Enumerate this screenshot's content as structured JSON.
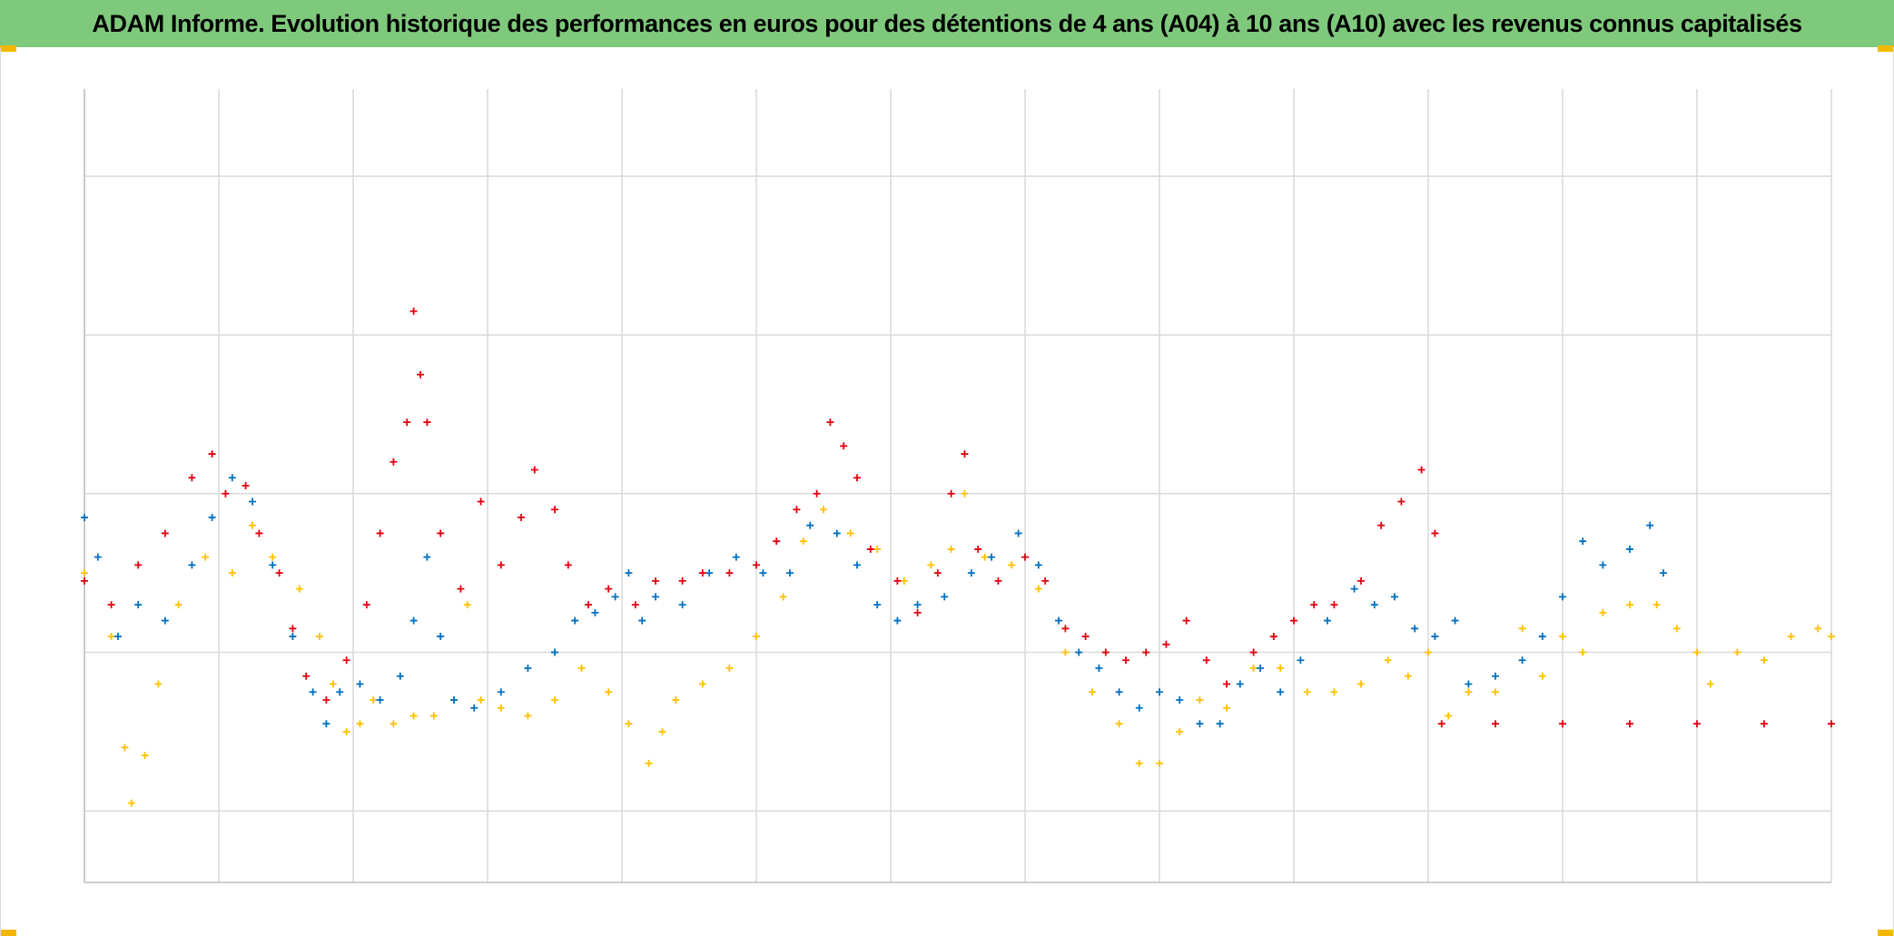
{
  "title": "ADAM Informe. Evolution historique des performances en euros pour des détentions de 4 ans (A04) à 10 ans (A10) avec les revenus connus capitalisés",
  "colors": {
    "title_background": "#7fc97c",
    "corner_accent": "#f2b800",
    "grid": "#d9d9d9",
    "plot_border": "#bfbfbf"
  },
  "chart_data": {
    "type": "scatter",
    "marker": "plus",
    "grid": true,
    "legend": "none",
    "tick_labels_visible": false,
    "xlim": [
      0,
      13
    ],
    "ylim": [
      -0.45,
      4.55
    ],
    "x_gridlines": 13,
    "y_gridlines": [
      0,
      1,
      2,
      3,
      4
    ],
    "series": [
      {
        "color": "#ffc000",
        "points": [
          [
            0.0,
            1.5
          ],
          [
            0.2,
            1.1
          ],
          [
            0.3,
            0.4
          ],
          [
            0.35,
            0.05
          ],
          [
            0.45,
            0.35
          ],
          [
            0.55,
            0.8
          ],
          [
            0.7,
            1.3
          ],
          [
            0.9,
            1.6
          ],
          [
            1.1,
            1.5
          ],
          [
            1.25,
            1.8
          ],
          [
            1.4,
            1.6
          ],
          [
            1.6,
            1.4
          ],
          [
            1.75,
            1.1
          ],
          [
            1.85,
            0.8
          ],
          [
            1.95,
            0.5
          ],
          [
            2.05,
            0.55
          ],
          [
            2.15,
            0.7
          ],
          [
            2.3,
            0.55
          ],
          [
            2.45,
            0.6
          ],
          [
            2.6,
            0.6
          ],
          [
            2.75,
            0.7
          ],
          [
            2.85,
            1.3
          ],
          [
            2.95,
            0.7
          ],
          [
            3.1,
            0.65
          ],
          [
            3.3,
            0.6
          ],
          [
            3.5,
            0.7
          ],
          [
            3.7,
            0.9
          ],
          [
            3.9,
            0.75
          ],
          [
            4.05,
            0.55
          ],
          [
            4.2,
            0.3
          ],
          [
            4.3,
            0.5
          ],
          [
            4.4,
            0.7
          ],
          [
            4.6,
            0.8
          ],
          [
            4.8,
            0.9
          ],
          [
            5.0,
            1.1
          ],
          [
            5.2,
            1.35
          ],
          [
            5.35,
            1.7
          ],
          [
            5.5,
            1.9
          ],
          [
            5.7,
            1.75
          ],
          [
            5.9,
            1.65
          ],
          [
            6.1,
            1.45
          ],
          [
            6.3,
            1.55
          ],
          [
            6.45,
            1.65
          ],
          [
            6.55,
            2.0
          ],
          [
            6.7,
            1.6
          ],
          [
            6.9,
            1.55
          ],
          [
            7.1,
            1.4
          ],
          [
            7.3,
            1.0
          ],
          [
            7.5,
            0.75
          ],
          [
            7.7,
            0.55
          ],
          [
            7.85,
            0.3
          ],
          [
            8.0,
            0.3
          ],
          [
            8.15,
            0.5
          ],
          [
            8.3,
            0.7
          ],
          [
            8.5,
            0.65
          ],
          [
            8.7,
            0.9
          ],
          [
            8.9,
            0.9
          ],
          [
            9.1,
            0.75
          ],
          [
            9.3,
            0.75
          ],
          [
            9.5,
            0.8
          ],
          [
            9.7,
            0.95
          ],
          [
            9.85,
            0.85
          ],
          [
            10.0,
            1.0
          ],
          [
            10.15,
            0.6
          ],
          [
            10.3,
            0.75
          ],
          [
            10.5,
            0.75
          ],
          [
            10.7,
            1.15
          ],
          [
            10.85,
            0.85
          ],
          [
            11.0,
            1.1
          ],
          [
            11.15,
            1.0
          ],
          [
            11.3,
            1.25
          ],
          [
            11.5,
            1.3
          ],
          [
            11.7,
            1.3
          ],
          [
            11.85,
            1.15
          ],
          [
            12.0,
            1.0
          ],
          [
            12.1,
            0.8
          ],
          [
            12.3,
            1.0
          ],
          [
            12.5,
            0.95
          ],
          [
            12.7,
            1.1
          ],
          [
            12.9,
            1.15
          ],
          [
            13.0,
            1.1
          ]
        ]
      },
      {
        "color": "#0070c0",
        "points": [
          [
            0.0,
            1.85
          ],
          [
            0.1,
            1.6
          ],
          [
            0.25,
            1.1
          ],
          [
            0.4,
            1.3
          ],
          [
            0.6,
            1.2
          ],
          [
            0.8,
            1.55
          ],
          [
            0.95,
            1.85
          ],
          [
            1.1,
            2.1
          ],
          [
            1.25,
            1.95
          ],
          [
            1.4,
            1.55
          ],
          [
            1.55,
            1.1
          ],
          [
            1.7,
            0.75
          ],
          [
            1.8,
            0.55
          ],
          [
            1.9,
            0.75
          ],
          [
            2.05,
            0.8
          ],
          [
            2.2,
            0.7
          ],
          [
            2.35,
            0.85
          ],
          [
            2.45,
            1.2
          ],
          [
            2.55,
            1.6
          ],
          [
            2.65,
            1.1
          ],
          [
            2.75,
            0.7
          ],
          [
            2.9,
            0.65
          ],
          [
            3.1,
            0.75
          ],
          [
            3.3,
            0.9
          ],
          [
            3.5,
            1.0
          ],
          [
            3.65,
            1.2
          ],
          [
            3.8,
            1.25
          ],
          [
            3.95,
            1.35
          ],
          [
            4.05,
            1.5
          ],
          [
            4.15,
            1.2
          ],
          [
            4.25,
            1.35
          ],
          [
            4.45,
            1.3
          ],
          [
            4.65,
            1.5
          ],
          [
            4.85,
            1.6
          ],
          [
            5.05,
            1.5
          ],
          [
            5.25,
            1.5
          ],
          [
            5.4,
            1.8
          ],
          [
            5.6,
            1.75
          ],
          [
            5.75,
            1.55
          ],
          [
            5.9,
            1.3
          ],
          [
            6.05,
            1.2
          ],
          [
            6.2,
            1.3
          ],
          [
            6.4,
            1.35
          ],
          [
            6.6,
            1.5
          ],
          [
            6.75,
            1.6
          ],
          [
            6.95,
            1.75
          ],
          [
            7.1,
            1.55
          ],
          [
            7.25,
            1.2
          ],
          [
            7.4,
            1.0
          ],
          [
            7.55,
            0.9
          ],
          [
            7.7,
            0.75
          ],
          [
            7.85,
            0.65
          ],
          [
            8.0,
            0.75
          ],
          [
            8.15,
            0.7
          ],
          [
            8.3,
            0.55
          ],
          [
            8.45,
            0.55
          ],
          [
            8.6,
            0.8
          ],
          [
            8.75,
            0.9
          ],
          [
            8.9,
            0.75
          ],
          [
            9.05,
            0.95
          ],
          [
            9.25,
            1.2
          ],
          [
            9.45,
            1.4
          ],
          [
            9.6,
            1.3
          ],
          [
            9.75,
            1.35
          ],
          [
            9.9,
            1.15
          ],
          [
            10.05,
            1.1
          ],
          [
            10.2,
            1.2
          ],
          [
            10.3,
            0.8
          ],
          [
            10.5,
            0.85
          ],
          [
            10.7,
            0.95
          ],
          [
            10.85,
            1.1
          ],
          [
            11.0,
            1.35
          ],
          [
            11.15,
            1.7
          ],
          [
            11.3,
            1.55
          ],
          [
            11.5,
            1.65
          ],
          [
            11.65,
            1.8
          ],
          [
            11.75,
            1.5
          ]
        ]
      },
      {
        "color": "#e3000f",
        "points": [
          [
            0.0,
            1.45
          ],
          [
            0.2,
            1.3
          ],
          [
            0.4,
            1.55
          ],
          [
            0.6,
            1.75
          ],
          [
            0.8,
            2.1
          ],
          [
            0.95,
            2.25
          ],
          [
            1.05,
            2.0
          ],
          [
            1.2,
            2.05
          ],
          [
            1.3,
            1.75
          ],
          [
            1.45,
            1.5
          ],
          [
            1.55,
            1.15
          ],
          [
            1.65,
            0.85
          ],
          [
            1.8,
            0.7
          ],
          [
            1.95,
            0.95
          ],
          [
            2.1,
            1.3
          ],
          [
            2.2,
            1.75
          ],
          [
            2.3,
            2.2
          ],
          [
            2.4,
            2.45
          ],
          [
            2.45,
            3.15
          ],
          [
            2.5,
            2.75
          ],
          [
            2.55,
            2.45
          ],
          [
            2.65,
            1.75
          ],
          [
            2.8,
            1.4
          ],
          [
            2.95,
            1.95
          ],
          [
            3.1,
            1.55
          ],
          [
            3.25,
            1.85
          ],
          [
            3.35,
            2.15
          ],
          [
            3.5,
            1.9
          ],
          [
            3.6,
            1.55
          ],
          [
            3.75,
            1.3
          ],
          [
            3.9,
            1.4
          ],
          [
            4.1,
            1.3
          ],
          [
            4.25,
            1.45
          ],
          [
            4.45,
            1.45
          ],
          [
            4.6,
            1.5
          ],
          [
            4.8,
            1.5
          ],
          [
            5.0,
            1.55
          ],
          [
            5.15,
            1.7
          ],
          [
            5.3,
            1.9
          ],
          [
            5.45,
            2.0
          ],
          [
            5.55,
            2.45
          ],
          [
            5.65,
            2.3
          ],
          [
            5.75,
            2.1
          ],
          [
            5.85,
            1.65
          ],
          [
            6.05,
            1.45
          ],
          [
            6.2,
            1.25
          ],
          [
            6.35,
            1.5
          ],
          [
            6.45,
            2.0
          ],
          [
            6.55,
            2.25
          ],
          [
            6.65,
            1.65
          ],
          [
            6.8,
            1.45
          ],
          [
            7.0,
            1.6
          ],
          [
            7.15,
            1.45
          ],
          [
            7.3,
            1.15
          ],
          [
            7.45,
            1.1
          ],
          [
            7.6,
            1.0
          ],
          [
            7.75,
            0.95
          ],
          [
            7.9,
            1.0
          ],
          [
            8.05,
            1.05
          ],
          [
            8.2,
            1.2
          ],
          [
            8.35,
            0.95
          ],
          [
            8.5,
            0.8
          ],
          [
            8.7,
            1.0
          ],
          [
            8.85,
            1.1
          ],
          [
            9.0,
            1.2
          ],
          [
            9.15,
            1.3
          ],
          [
            9.3,
            1.3
          ],
          [
            9.5,
            1.45
          ],
          [
            9.65,
            1.8
          ],
          [
            9.8,
            1.95
          ],
          [
            9.95,
            2.15
          ],
          [
            10.05,
            1.75
          ],
          [
            10.1,
            0.55
          ],
          [
            10.5,
            0.55
          ],
          [
            11.0,
            0.55
          ],
          [
            11.5,
            0.55
          ],
          [
            12.0,
            0.55
          ],
          [
            12.5,
            0.55
          ],
          [
            13.0,
            0.55
          ]
        ]
      }
    ]
  }
}
